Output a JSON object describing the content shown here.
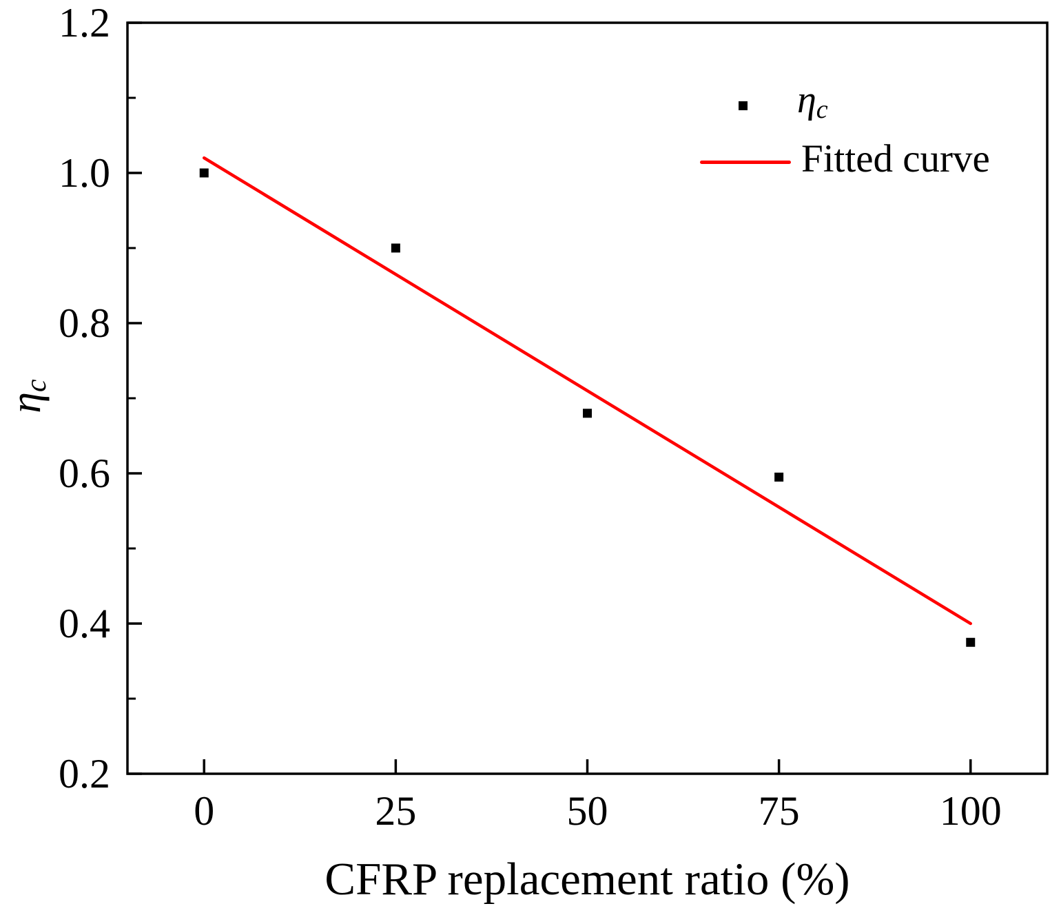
{
  "page": {
    "background": "#ffffff"
  },
  "chart_data": {
    "type": "scatter",
    "title": "",
    "xlabel": "CFRP replacement ratio (%)",
    "ylabel": {
      "symbol": "η",
      "subscript": "c"
    },
    "axis_color": "#000000",
    "grid": false,
    "xlim": [
      -10,
      110
    ],
    "ylim": [
      0.2,
      1.2
    ],
    "x_ticks": [
      {
        "value": 0,
        "label": "0"
      },
      {
        "value": 25,
        "label": "25"
      },
      {
        "value": 50,
        "label": "50"
      },
      {
        "value": 75,
        "label": "75"
      },
      {
        "value": 100,
        "label": "100"
      }
    ],
    "y_ticks": [
      {
        "value": 0.2,
        "label": "0.2"
      },
      {
        "value": 0.4,
        "label": "0.4"
      },
      {
        "value": 0.6,
        "label": "0.6"
      },
      {
        "value": 0.8,
        "label": "0.8"
      },
      {
        "value": 1.0,
        "label": "1.0"
      },
      {
        "value": 1.2,
        "label": "1.2"
      }
    ],
    "y_minor_ticks": [
      0.3,
      0.5,
      0.7,
      0.9,
      1.1
    ],
    "series": [
      {
        "name": "ηc",
        "type": "scatter",
        "marker": "square",
        "color": "#000000",
        "x": [
          0,
          25,
          50,
          75,
          100
        ],
        "y": [
          1.0,
          0.9,
          0.68,
          0.595,
          0.375
        ]
      },
      {
        "name": "Fitted curve",
        "type": "line",
        "color": "#ff0000",
        "x": [
          0,
          100
        ],
        "y": [
          1.02,
          0.4
        ]
      }
    ],
    "legend": {
      "position": "upper-right",
      "entries": [
        {
          "label_symbol": "η",
          "label_subscript": "c",
          "marker": "square",
          "color": "#000000"
        },
        {
          "label": "Fitted curve",
          "marker": "line",
          "color": "#ff0000"
        }
      ]
    }
  }
}
